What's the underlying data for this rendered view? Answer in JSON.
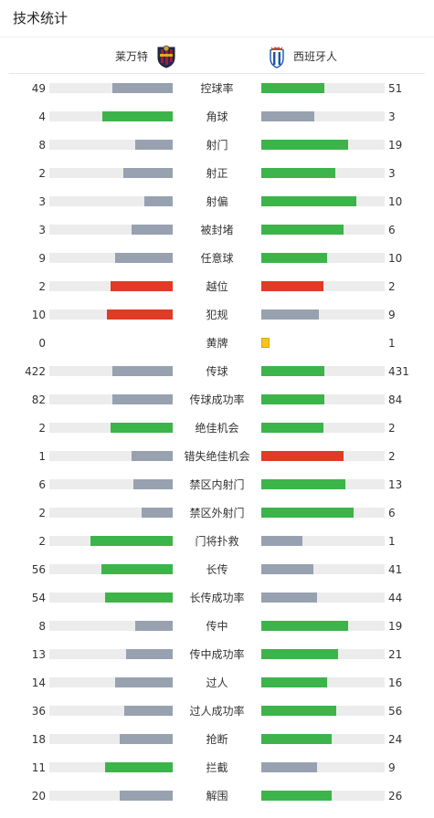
{
  "page": {
    "title": "技术统计"
  },
  "teams": {
    "home": {
      "name": "莱万特",
      "crest_icon": "levante-crest-icon"
    },
    "away": {
      "name": "西班牙人",
      "crest_icon": "espanyol-crest-icon"
    }
  },
  "colors": {
    "green": "#3cb44a",
    "gray": "#97a1b0",
    "red": "#e03b24",
    "track": "#ececec",
    "yellow": "#f5c518"
  },
  "stats": [
    {
      "label": "控球率",
      "home": "49",
      "away": "51",
      "home_level": 0.49,
      "away_level": 0.51,
      "home_color": "gray",
      "away_color": "green"
    },
    {
      "label": "角球",
      "home": "4",
      "away": "3",
      "home_level": 0.57,
      "away_level": 0.43,
      "home_color": "green",
      "away_color": "gray"
    },
    {
      "label": "射门",
      "home": "8",
      "away": "19",
      "home_level": 0.3,
      "away_level": 0.7,
      "home_color": "gray",
      "away_color": "green"
    },
    {
      "label": "射正",
      "home": "2",
      "away": "3",
      "home_level": 0.4,
      "away_level": 0.6,
      "home_color": "gray",
      "away_color": "green"
    },
    {
      "label": "射偏",
      "home": "3",
      "away": "10",
      "home_level": 0.23,
      "away_level": 0.77,
      "home_color": "gray",
      "away_color": "green"
    },
    {
      "label": "被封堵",
      "home": "3",
      "away": "6",
      "home_level": 0.33,
      "away_level": 0.67,
      "home_color": "gray",
      "away_color": "green"
    },
    {
      "label": "任意球",
      "home": "9",
      "away": "10",
      "home_level": 0.47,
      "away_level": 0.53,
      "home_color": "gray",
      "away_color": "green"
    },
    {
      "label": "越位",
      "home": "2",
      "away": "2",
      "home_level": 0.5,
      "away_level": 0.5,
      "home_color": "red",
      "away_color": "red"
    },
    {
      "label": "犯规",
      "home": "10",
      "away": "9",
      "home_level": 0.53,
      "away_level": 0.47,
      "home_color": "red",
      "away_color": "gray"
    },
    {
      "label": "黄牌",
      "home": "0",
      "away": "1",
      "home_level": 0,
      "away_level": 0,
      "home_color": "none",
      "away_color": "yellow",
      "no_track": true
    },
    {
      "label": "传球",
      "home": "422",
      "away": "431",
      "home_level": 0.49,
      "away_level": 0.51,
      "home_color": "gray",
      "away_color": "green"
    },
    {
      "label": "传球成功率",
      "home": "82",
      "away": "84",
      "home_level": 0.49,
      "away_level": 0.51,
      "home_color": "gray",
      "away_color": "green"
    },
    {
      "label": "绝佳机会",
      "home": "2",
      "away": "2",
      "home_level": 0.5,
      "away_level": 0.5,
      "home_color": "green",
      "away_color": "green"
    },
    {
      "label": "错失绝佳机会",
      "home": "1",
      "away": "2",
      "home_level": 0.33,
      "away_level": 0.67,
      "home_color": "gray",
      "away_color": "red"
    },
    {
      "label": "禁区内射门",
      "home": "6",
      "away": "13",
      "home_level": 0.32,
      "away_level": 0.68,
      "home_color": "gray",
      "away_color": "green"
    },
    {
      "label": "禁区外射门",
      "home": "2",
      "away": "6",
      "home_level": 0.25,
      "away_level": 0.75,
      "home_color": "gray",
      "away_color": "green"
    },
    {
      "label": "门将扑救",
      "home": "2",
      "away": "1",
      "home_level": 0.67,
      "away_level": 0.33,
      "home_color": "green",
      "away_color": "gray"
    },
    {
      "label": "长传",
      "home": "56",
      "away": "41",
      "home_level": 0.58,
      "away_level": 0.42,
      "home_color": "green",
      "away_color": "gray"
    },
    {
      "label": "长传成功率",
      "home": "54",
      "away": "44",
      "home_level": 0.55,
      "away_level": 0.45,
      "home_color": "green",
      "away_color": "gray"
    },
    {
      "label": "传中",
      "home": "8",
      "away": "19",
      "home_level": 0.3,
      "away_level": 0.7,
      "home_color": "gray",
      "away_color": "green"
    },
    {
      "label": "传中成功率",
      "home": "13",
      "away": "21",
      "home_level": 0.38,
      "away_level": 0.62,
      "home_color": "gray",
      "away_color": "green"
    },
    {
      "label": "过人",
      "home": "14",
      "away": "16",
      "home_level": 0.47,
      "away_level": 0.53,
      "home_color": "gray",
      "away_color": "green"
    },
    {
      "label": "过人成功率",
      "home": "36",
      "away": "56",
      "home_level": 0.39,
      "away_level": 0.61,
      "home_color": "gray",
      "away_color": "green"
    },
    {
      "label": "抢断",
      "home": "18",
      "away": "24",
      "home_level": 0.43,
      "away_level": 0.57,
      "home_color": "gray",
      "away_color": "green"
    },
    {
      "label": "拦截",
      "home": "11",
      "away": "9",
      "home_level": 0.55,
      "away_level": 0.45,
      "home_color": "green",
      "away_color": "gray"
    },
    {
      "label": "解围",
      "home": "20",
      "away": "26",
      "home_level": 0.43,
      "away_level": 0.57,
      "home_color": "gray",
      "away_color": "green"
    }
  ]
}
